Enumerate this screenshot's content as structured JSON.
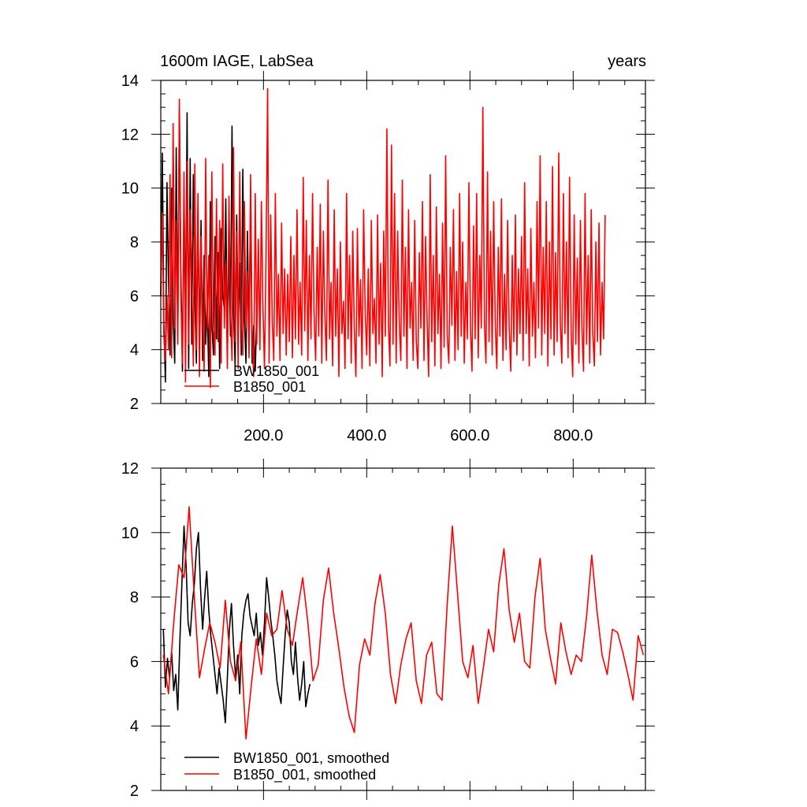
{
  "chart_data": [
    {
      "type": "line",
      "title": "1600m IAGE, LabSea",
      "units": "years",
      "xlim": [
        1,
        940
      ],
      "ylim": [
        2,
        14
      ],
      "x_ticks": [
        200,
        400,
        600,
        800
      ],
      "x_tick_labels": [
        "200.0",
        "400.0",
        "600.0",
        "800.0"
      ],
      "y_ticks": [
        2,
        4,
        6,
        8,
        10,
        12,
        14
      ],
      "y_tick_labels": [
        "2",
        "4",
        "6",
        "8",
        "10",
        "12",
        "14"
      ],
      "legend_position": "bottom-left",
      "grid": false,
      "series": [
        {
          "name": "BW1850_001",
          "color": "#000000",
          "x_start": 1,
          "x_step": 3,
          "values": [
            6.0,
            11.3,
            5.0,
            2.8,
            10.2,
            6.5,
            3.8,
            10.0,
            5.2,
            3.5,
            11.5,
            4.5,
            12.9,
            6.8,
            3.2,
            9.5,
            5.0,
            12.8,
            3.3,
            11.1,
            4.2,
            10.5,
            6.0,
            3.5,
            9.2,
            4.0,
            8.8,
            3.6,
            7.5,
            4.2,
            5.8,
            3.0,
            9.5,
            5.0,
            3.8,
            8.2,
            4.4,
            7.6,
            3.3,
            8.5,
            6.0,
            5.5,
            9.6,
            3.7,
            7.8,
            4.5,
            12.3,
            5.5,
            3.4,
            9.0,
            4.8,
            7.2,
            3.8,
            10.7,
            5.2,
            3.5,
            8.4,
            4.2,
            9.8,
            3.5,
            4.9,
            3.2,
            5.4
          ]
        },
        {
          "name": "B1850_001",
          "color": "#ff0000",
          "x_start": 1,
          "x_step": 3,
          "values": [
            6.0,
            9.1,
            4.5,
            3.6,
            6.0,
            4.0,
            10.5,
            3.7,
            12.4,
            4.8,
            8.8,
            4.2,
            13.3,
            6.0,
            3.5,
            10.6,
            2.8,
            11.0,
            4.2,
            9.2,
            6.8,
            3.4,
            10.9,
            4.0,
            9.8,
            3.0,
            8.2,
            5.4,
            3.2,
            11.1,
            4.8,
            7.5,
            2.6,
            10.6,
            5.0,
            3.8,
            9.6,
            4.3,
            8.8,
            3.5,
            10.9,
            4.8,
            7.2,
            3.3,
            9.7,
            5.5,
            3.6,
            11.5,
            4.3,
            8.4,
            3.3,
            10.6,
            5.0,
            3.8,
            9.5,
            4.8,
            6.9,
            3.7,
            10.5,
            4.5,
            3.0,
            9.8,
            4.2,
            8.1,
            4.0,
            9.5,
            5.5,
            3.3,
            7.5,
            13.7,
            3.5,
            9.0,
            5.0,
            3.6,
            9.8,
            4.5,
            6.8,
            3.6,
            8.7,
            4.6,
            7.0,
            3.8,
            6.8,
            4.3,
            8.2,
            3.7,
            7.5,
            4.4,
            9.2,
            4.2,
            6.5,
            3.8,
            10.4,
            4.7,
            8.8,
            3.6,
            7.5,
            4.4,
            9.8,
            5.3,
            3.6,
            7.8,
            4.5,
            9.4,
            3.5,
            8.4,
            5.2,
            3.6,
            10.3,
            4.4,
            6.5,
            3.4,
            9.2,
            4.5,
            7.0,
            3.0,
            8.0,
            4.6,
            5.8,
            3.3,
            9.8,
            4.4,
            7.5,
            3.5,
            8.4,
            4.8,
            3.0,
            8.5,
            4.5,
            6.6,
            3.3,
            9.2,
            5.4,
            3.8,
            7.0,
            3.4,
            8.8,
            4.6,
            5.9,
            3.5,
            9.0,
            4.2,
            7.2,
            3.0,
            8.4,
            4.5,
            12.2,
            5.0,
            3.4,
            11.6,
            4.2,
            9.8,
            3.5,
            8.4,
            5.0,
            3.6,
            10.3,
            4.5,
            7.8,
            3.3,
            9.2,
            4.8,
            6.5,
            3.6,
            8.8,
            4.3,
            3.3,
            7.6,
            4.8,
            9.5,
            3.6,
            8.2,
            5.0,
            3.0,
            10.5,
            4.3,
            7.5,
            3.4,
            9.3,
            4.6,
            6.8,
            3.3,
            8.7,
            4.1,
            11.2,
            4.5,
            3.5,
            7.8,
            4.9,
            9.2,
            3.6,
            6.9,
            4.0,
            9.8,
            4.5,
            8.0,
            3.5,
            6.5,
            4.4,
            10.2,
            4.8,
            3.2,
            8.6,
            4.4,
            9.8,
            3.7,
            7.5,
            4.8,
            13.0,
            5.0,
            3.5,
            10.6,
            4.3,
            8.4,
            3.8,
            9.5,
            5.0,
            3.3,
            7.8,
            4.5,
            9.6,
            3.6,
            6.8,
            4.0,
            8.8,
            4.8,
            3.2,
            7.5,
            4.3,
            9.0,
            3.8,
            7.0,
            4.6,
            8.2,
            3.6,
            10.2,
            4.6,
            7.0,
            3.4,
            8.5,
            4.5,
            6.5,
            3.7,
            9.5,
            4.8,
            11.2,
            3.8,
            7.8,
            4.6,
            9.5,
            3.4,
            8.0,
            4.4,
            10.8,
            3.8,
            7.6,
            4.3,
            11.3,
            5.0,
            3.5,
            9.8,
            4.6,
            8.0,
            3.7,
            10.4,
            4.6,
            3.0,
            9.0,
            4.2,
            7.4,
            3.5,
            8.8,
            4.8,
            3.2,
            9.8,
            4.2,
            7.5,
            3.5,
            9.2,
            4.6,
            3.4,
            8.0,
            4.3,
            8.7,
            3.8,
            6.5,
            4.4,
            9.0
          ]
        }
      ]
    },
    {
      "type": "line",
      "xlim": [
        1,
        940
      ],
      "ylim": [
        2,
        12
      ],
      "y_ticks": [
        2,
        4,
        6,
        8,
        10,
        12
      ],
      "y_tick_labels": [
        "2",
        "4",
        "6",
        "8",
        "10",
        "12"
      ],
      "legend_position": "bottom-left",
      "grid": false,
      "series": [
        {
          "name": "BW1850_001, smoothed",
          "color": "#000000",
          "x": [
            6,
            10,
            14,
            18,
            22,
            26,
            30,
            34,
            38,
            42,
            46,
            50,
            54,
            58,
            62,
            66,
            70,
            74,
            78,
            82,
            86,
            90,
            94,
            98,
            102,
            106,
            110,
            114,
            118,
            122,
            126,
            130,
            134,
            138,
            142,
            146,
            150,
            154,
            158,
            162,
            166,
            170,
            174,
            178,
            182,
            186,
            190,
            194,
            198,
            202,
            206,
            210,
            214,
            218,
            222,
            226,
            230,
            234,
            238,
            242,
            246,
            250,
            254,
            258,
            262,
            266,
            270,
            274,
            278,
            282,
            286,
            290
          ],
          "y": [
            7.0,
            5.2,
            6.1,
            5.5,
            6.3,
            5.1,
            5.6,
            4.5,
            6.6,
            8.5,
            10.2,
            9.0,
            7.2,
            6.8,
            7.8,
            8.4,
            9.5,
            10.0,
            8.3,
            7.0,
            8.0,
            8.8,
            7.6,
            6.8,
            6.2,
            5.6,
            5.0,
            5.8,
            5.3,
            4.8,
            4.1,
            5.5,
            7.0,
            7.8,
            6.5,
            5.5,
            6.2,
            5.0,
            6.8,
            7.5,
            7.9,
            8.1,
            7.4,
            7.1,
            6.8,
            7.5,
            6.5,
            6.9,
            6.2,
            7.2,
            8.6,
            8.0,
            7.3,
            6.8,
            6.2,
            5.4,
            5.0,
            4.7,
            5.8,
            6.8,
            7.6,
            7.2,
            6.0,
            5.6,
            6.6,
            5.5,
            4.8,
            5.3,
            6.0,
            4.6,
            5.0,
            5.3
          ]
        },
        {
          "name": "B1850_001, smoothed",
          "color": "#ff0000",
          "x": [
            6,
            16,
            26,
            36,
            46,
            56,
            66,
            76,
            86,
            96,
            106,
            116,
            126,
            136,
            146,
            156,
            166,
            176,
            186,
            196,
            206,
            216,
            226,
            236,
            246,
            256,
            266,
            276,
            286,
            296,
            306,
            316,
            326,
            336,
            346,
            356,
            366,
            376,
            386,
            396,
            406,
            416,
            426,
            436,
            446,
            456,
            466,
            476,
            486,
            496,
            506,
            516,
            526,
            536,
            546,
            556,
            566,
            576,
            586,
            596,
            606,
            616,
            626,
            636,
            646,
            656,
            666,
            676,
            686,
            696,
            706,
            716,
            726,
            736,
            746,
            756,
            766,
            776,
            786,
            796,
            806,
            816,
            826,
            836,
            846,
            856,
            866,
            876,
            886,
            896,
            906,
            916,
            926,
            936
          ],
          "y": [
            6.2,
            5.0,
            7.2,
            9.0,
            8.6,
            10.8,
            8.0,
            5.5,
            6.4,
            7.2,
            6.6,
            5.8,
            7.9,
            6.0,
            5.4,
            6.6,
            3.6,
            5.2,
            6.7,
            5.6,
            7.5,
            6.8,
            7.0,
            8.2,
            7.0,
            6.5,
            7.6,
            8.6,
            7.2,
            5.4,
            5.9,
            7.9,
            8.9,
            7.5,
            6.4,
            5.2,
            4.3,
            3.8,
            5.9,
            6.7,
            6.2,
            7.8,
            8.7,
            7.5,
            5.6,
            4.7,
            5.9,
            6.7,
            7.2,
            5.4,
            4.7,
            6.2,
            6.6,
            5.0,
            4.8,
            7.8,
            10.2,
            8.1,
            6.0,
            5.5,
            6.5,
            4.7,
            5.8,
            7.0,
            6.3,
            8.4,
            9.5,
            7.6,
            6.6,
            7.5,
            6.0,
            5.8,
            8.0,
            9.2,
            7.0,
            6.1,
            5.3,
            7.2,
            6.3,
            5.6,
            6.2,
            6.0,
            7.4,
            9.3,
            7.6,
            6.2,
            5.6,
            7.0,
            6.9,
            6.3,
            5.6,
            4.8,
            6.8,
            6.2
          ]
        }
      ]
    }
  ]
}
